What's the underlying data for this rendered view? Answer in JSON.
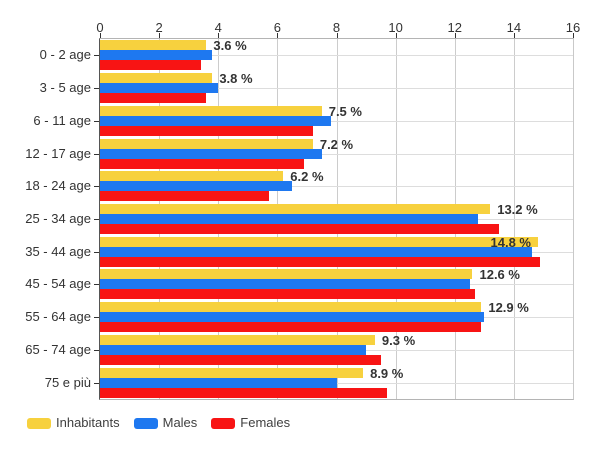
{
  "chart_data": {
    "type": "bar",
    "orientation": "horizontal",
    "title": "",
    "xlabel": "",
    "ylabel": "",
    "xlim": [
      0,
      16
    ],
    "x_ticks": [
      0,
      2,
      4,
      6,
      8,
      10,
      12,
      14,
      16
    ],
    "grid": true,
    "legend_position": "bottom",
    "categories": [
      "0 - 2 age",
      "3 - 5 age",
      "6 - 11 age",
      "12 - 17 age",
      "18 - 24 age",
      "25 - 34 age",
      "35 - 44 age",
      "45 - 54 age",
      "55 - 64 age",
      "65 - 74 age",
      "75 e più"
    ],
    "series": [
      {
        "name": "Inhabitants",
        "color": "#F7D13E",
        "values": [
          3.6,
          3.8,
          7.5,
          7.2,
          6.2,
          13.2,
          14.8,
          12.6,
          12.9,
          9.3,
          8.9
        ]
      },
      {
        "name": "Males",
        "color": "#1E78F0",
        "values": [
          3.8,
          4.0,
          7.8,
          7.5,
          6.5,
          12.8,
          14.6,
          12.5,
          13.0,
          9.0,
          8.0
        ]
      },
      {
        "name": "Females",
        "color": "#F81414",
        "values": [
          3.4,
          3.6,
          7.2,
          6.9,
          5.7,
          13.5,
          14.9,
          12.7,
          12.9,
          9.5,
          9.7
        ]
      }
    ],
    "value_labels": [
      "3.6 %",
      "3.8 %",
      "7.5 %",
      "7.2 %",
      "6.2 %",
      "13.2 %",
      "14.8 %",
      "12.6 %",
      "12.9 %",
      "9.3 %",
      "8.9 %"
    ],
    "colors": {
      "value_label_text": "#333333",
      "axis_text": "#333333",
      "legend_text": "#404040",
      "vertical_gridline": "#cccccc",
      "horizontal_gridline": "#dddddd"
    }
  },
  "legend": {
    "items": [
      {
        "label": "Inhabitants",
        "color": "#F7D13E"
      },
      {
        "label": "Males",
        "color": "#1E78F0"
      },
      {
        "label": "Females",
        "color": "#F81414"
      }
    ]
  }
}
